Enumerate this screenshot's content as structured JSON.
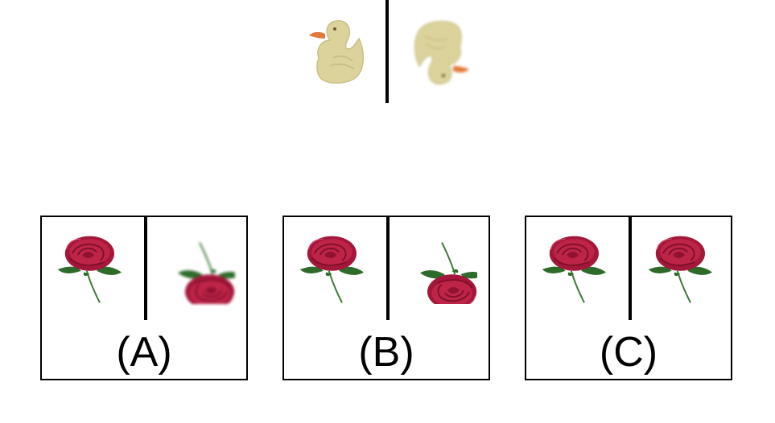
{
  "question": {
    "example_left_icon": "rubber-duck-upright",
    "example_right_icon": "rubber-duck-upside-down-blurred"
  },
  "options": [
    {
      "label": "(A)",
      "left_icon": "rose-upright",
      "right_icon": "rose-upside-down-blurred"
    },
    {
      "label": "(B)",
      "left_icon": "rose-upright",
      "right_icon": "rose-upside-down"
    },
    {
      "label": "(C)",
      "left_icon": "rose-upright",
      "right_icon": "rose-upright"
    }
  ],
  "colors": {
    "duck_body": "#d9d09a",
    "duck_beak": "#e07a3a",
    "rose_red": "#b51d3c",
    "rose_dark": "#7e0f28",
    "leaf_green": "#2e6b2a",
    "stem_green": "#3f7a3a"
  }
}
